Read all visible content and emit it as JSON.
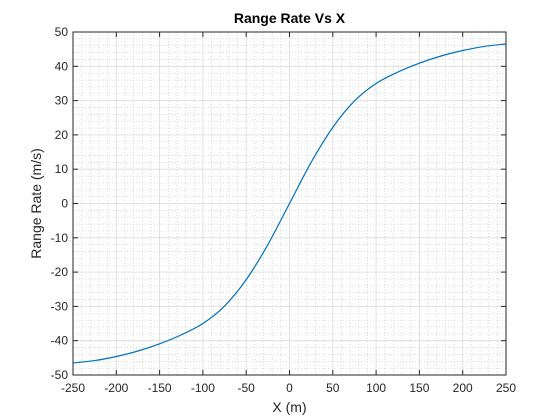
{
  "chart_data": {
    "type": "line",
    "title": "Range Rate Vs X",
    "xlabel": "X (m)",
    "ylabel": "Range Rate (m/s)",
    "xlim": [
      -250,
      250
    ],
    "ylim": [
      -50,
      50
    ],
    "xticks": [
      -250,
      -200,
      -150,
      -100,
      -50,
      0,
      50,
      100,
      150,
      200,
      250
    ],
    "yticks": [
      -50,
      -40,
      -30,
      -20,
      -10,
      0,
      10,
      20,
      30,
      40,
      50
    ],
    "grid": "on (major and minor, dotted)",
    "legend": "none",
    "series": [
      {
        "color": "#0072BD",
        "x": [
          -250,
          -225,
          -200,
          -175,
          -150,
          -125,
          -100,
          -75,
          -50,
          -25,
          0,
          25,
          50,
          75,
          100,
          125,
          150,
          175,
          200,
          225,
          250
        ],
        "y": [
          -46.5,
          -45.8,
          -44.6,
          -43.0,
          -40.9,
          -38.3,
          -35.0,
          -29.9,
          -22.2,
          -12.0,
          0,
          12.0,
          22.2,
          29.9,
          35.0,
          38.3,
          40.9,
          43.0,
          44.6,
          45.8,
          46.5
        ]
      }
    ]
  }
}
